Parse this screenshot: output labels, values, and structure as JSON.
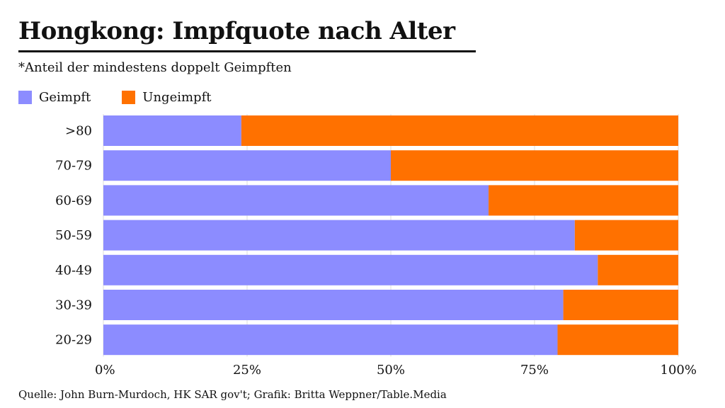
{
  "header": {
    "title": "Hongkong: Impfquote nach Alter",
    "subtitle": "*Anteil der mindestens doppelt Geimpften"
  },
  "legend": {
    "items": [
      {
        "label": "Geimpft",
        "color": "#8C8CFF"
      },
      {
        "label": "Ungeimpft",
        "color": "#FF7100"
      }
    ]
  },
  "footer": {
    "source": "Quelle: John Burn-Murdoch, HK SAR gov't; Grafik: Britta Weppner/Table.Media"
  },
  "chart_data": {
    "type": "bar",
    "orientation": "horizontal",
    "stacked": true,
    "title": "Hongkong: Impfquote nach Alter",
    "subtitle": "*Anteil der mindestens doppelt Geimpften",
    "categories": [
      ">80",
      "70-79",
      "60-69",
      "50-59",
      "40-49",
      "30-39",
      "20-29"
    ],
    "series": [
      {
        "name": "Geimpft",
        "color": "#8C8CFF",
        "values": [
          24,
          50,
          67,
          82,
          86,
          80,
          79
        ]
      },
      {
        "name": "Ungeimpft",
        "color": "#FF7100",
        "values": [
          76,
          50,
          33,
          18,
          14,
          20,
          21
        ]
      }
    ],
    "xlim": [
      0,
      100
    ],
    "xticks": [
      0,
      25,
      50,
      75,
      100
    ],
    "xtick_labels": [
      "0%",
      "25%",
      "50%",
      "75%",
      "100%"
    ],
    "xlabel": "",
    "ylabel": "",
    "legend_position": "top-left",
    "grid": true
  }
}
